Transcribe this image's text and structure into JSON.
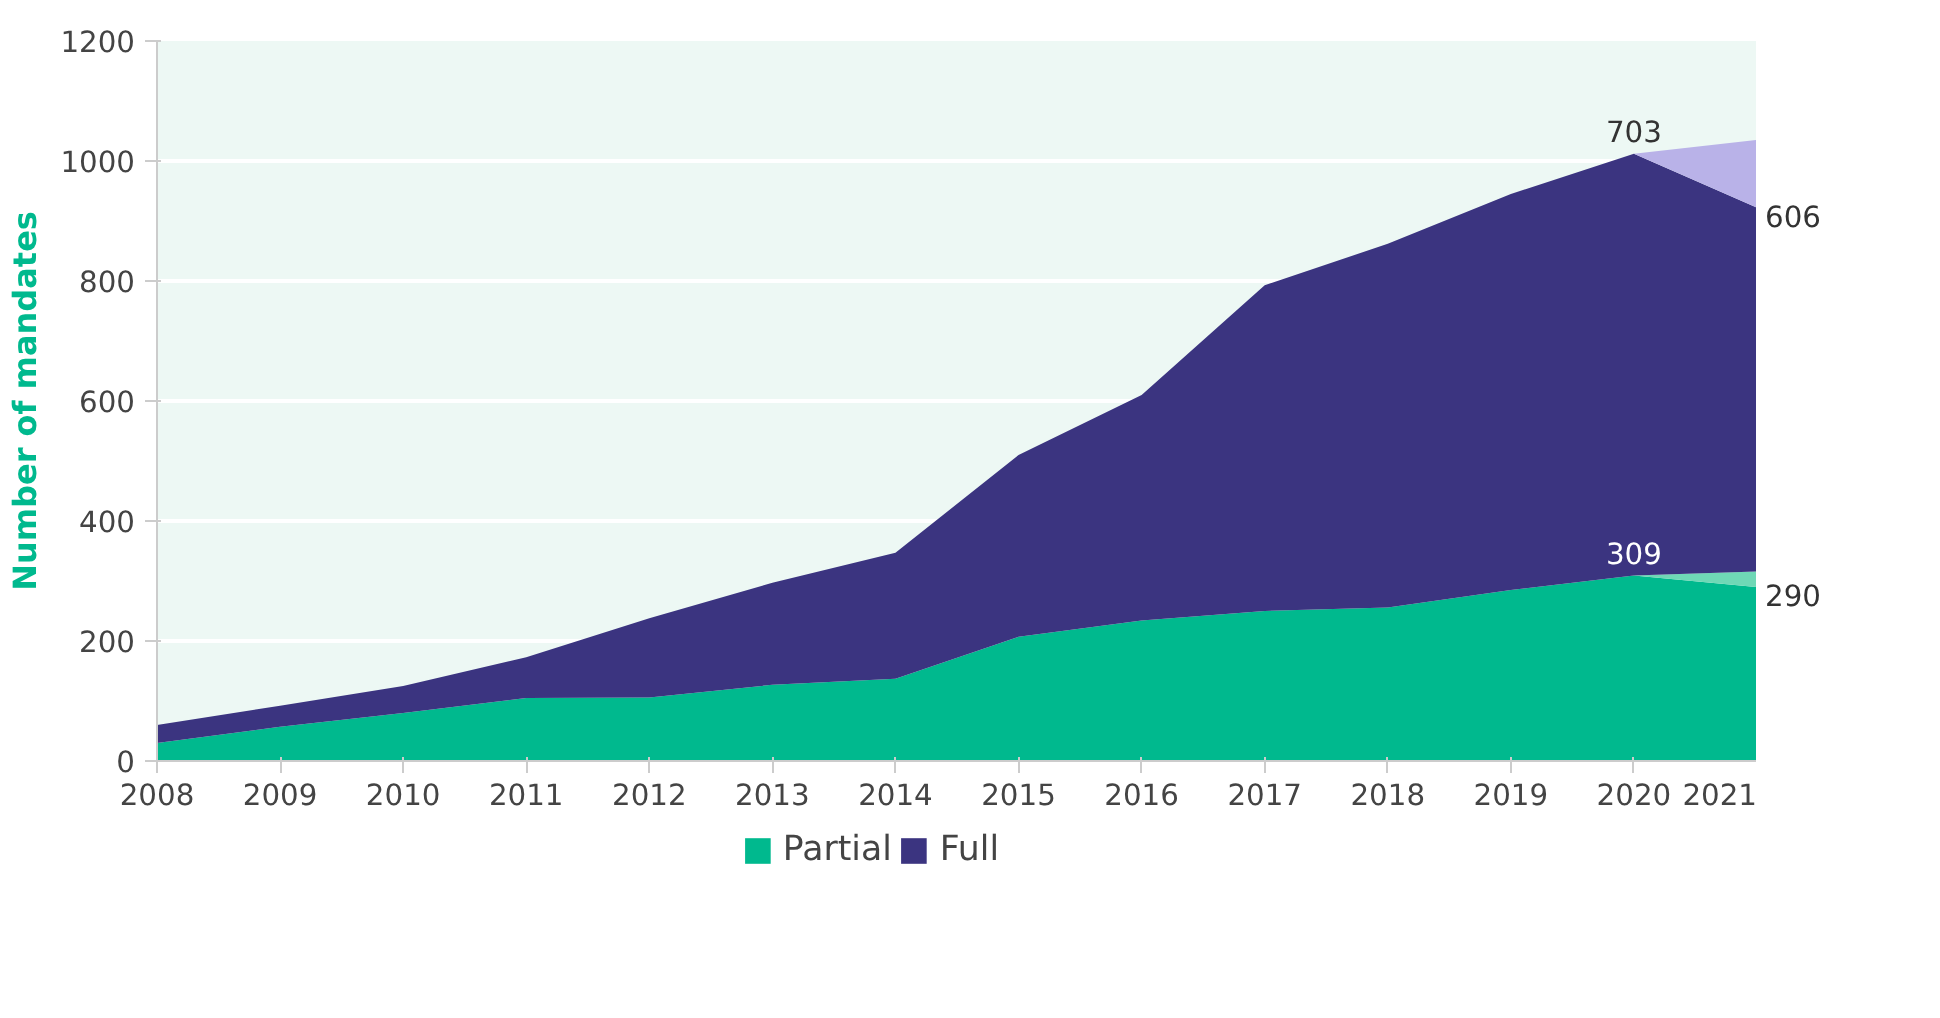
{
  "chart_data": {
    "type": "area",
    "stacked": true,
    "ylabel": "Number of mandates",
    "x": [
      2008,
      2009,
      2010,
      2011,
      2012,
      2013,
      2014,
      2015,
      2016,
      2017,
      2018,
      2019,
      2020,
      2021
    ],
    "xlim": [
      2008,
      2021
    ],
    "xticks": [
      2008,
      2009,
      2010,
      2011,
      2012,
      2013,
      2014,
      2015,
      2016,
      2017,
      2018,
      2019,
      2020,
      2021
    ],
    "ylim": [
      0,
      1200
    ],
    "yticks": [
      0,
      200,
      400,
      600,
      800,
      1000,
      1200
    ],
    "grid": "y",
    "legend": "bottom",
    "series": [
      {
        "name": "Partial",
        "color": "#00b98e",
        "values": [
          30,
          57,
          80,
          105,
          106,
          127,
          137,
          207,
          234,
          250,
          256,
          285,
          309,
          290
        ],
        "value_labels": [
          null,
          null,
          null,
          null,
          null,
          null,
          null,
          null,
          null,
          null,
          null,
          null,
          "309",
          "290"
        ]
      },
      {
        "color": "#6fd8b6",
        "values": [
          0,
          0,
          0,
          0,
          0,
          0,
          0,
          0,
          0,
          0,
          0,
          0,
          0,
          26
        ]
      },
      {
        "name": "Full",
        "color": "#3b3480",
        "values": [
          30,
          35,
          45,
          68,
          132,
          170,
          210,
          303,
          376,
          543,
          606,
          660,
          703,
          606
        ],
        "value_labels": [
          null,
          null,
          null,
          null,
          null,
          null,
          null,
          null,
          null,
          null,
          null,
          null,
          "703",
          "606"
        ]
      },
      {
        "color": "#b9b2e8",
        "values": [
          0,
          0,
          0,
          0,
          0,
          0,
          0,
          0,
          0,
          0,
          0,
          0,
          0,
          113
        ]
      }
    ]
  }
}
